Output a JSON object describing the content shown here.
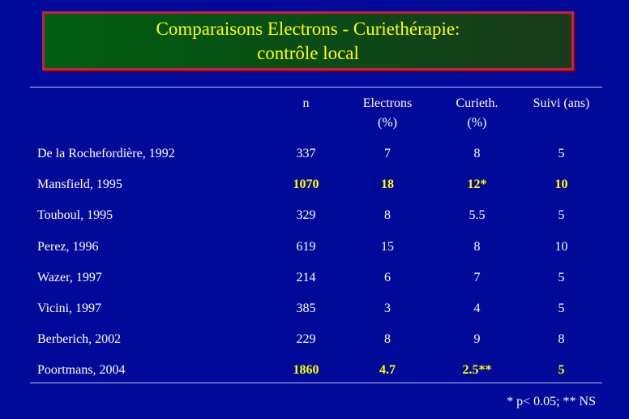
{
  "title": {
    "line1": "Comparaisons  Electrons - Curiethérapie:",
    "line2": "contrôle  local"
  },
  "table": {
    "headers": [
      {
        "line1": "",
        "line2": ""
      },
      {
        "line1": "n",
        "line2": ""
      },
      {
        "line1": "Electrons",
        "line2": "(%)"
      },
      {
        "line1": "Curieth.",
        "line2": "(%)"
      },
      {
        "line1": "Suivi (ans)",
        "line2": ""
      }
    ],
    "rows": [
      {
        "study": "De la Rochefordière,  1992",
        "n": "337",
        "electrons": "7",
        "curieth": "8",
        "suivi": "5",
        "highlight": false
      },
      {
        "study": "Mansfield,  1995",
        "n": "1070",
        "electrons": "18",
        "curieth": "12*",
        "suivi": "10",
        "highlight": true
      },
      {
        "study": "Touboul,  1995",
        "n": "329",
        "electrons": "8",
        "curieth": "5.5",
        "suivi": "5",
        "highlight": false
      },
      {
        "study": "Perez,  1996",
        "n": "619",
        "electrons": "15",
        "curieth": "8",
        "suivi": "10",
        "highlight": false
      },
      {
        "study": "Wazer,  1997",
        "n": "214",
        "electrons": "6",
        "curieth": "7",
        "suivi": "5",
        "highlight": false
      },
      {
        "study": "Vicini,  1997",
        "n": "385",
        "electrons": "3",
        "curieth": "4",
        "suivi": "5",
        "highlight": false
      },
      {
        "study": "Berberich,  2002",
        "n": "229",
        "electrons": "8",
        "curieth": "9",
        "suivi": "8",
        "highlight": false
      },
      {
        "study": "Poortmans,  2004",
        "n": "1860",
        "electrons": "4.7",
        "curieth": "2.5**",
        "suivi": "5",
        "highlight": true
      }
    ]
  },
  "footnote": "* p< 0.05; ** NS",
  "colors": {
    "background": "#020b99",
    "highlight": "#ffff00",
    "title_border": "#c8203a",
    "title_fill": "#005f10"
  }
}
